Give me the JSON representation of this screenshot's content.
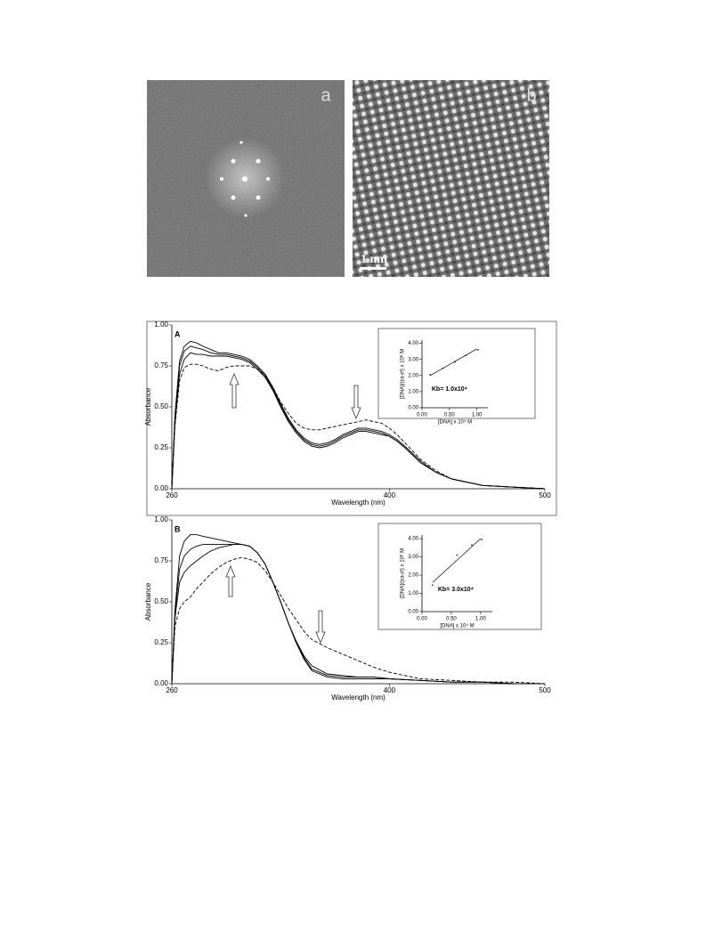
{
  "images": [
    {
      "label": "a"
    },
    {
      "label": "b",
      "scale_bar": "1 nm"
    }
  ],
  "chart_data": [
    {
      "type": "line",
      "panel_label": "A",
      "xlabel": "Wavelength (nm)",
      "ylabel": "Absorbance",
      "x": [
        260,
        262,
        265,
        268,
        272,
        276,
        280,
        285,
        290,
        295,
        300,
        305,
        310,
        315,
        320,
        325,
        330,
        335,
        340,
        345,
        350,
        355,
        360,
        365,
        370,
        375,
        380,
        385,
        390,
        395,
        400,
        405,
        410,
        420,
        430,
        440,
        460,
        480,
        500
      ],
      "xlim": [
        260,
        500
      ],
      "xticks": [
        260,
        400,
        500
      ],
      "ylim": [
        0,
        1
      ],
      "yticks": [
        {
          "value": 0,
          "label": "0.00"
        },
        {
          "value": 0.25,
          "label": "0.25"
        },
        {
          "value": 0.5,
          "label": "0.50"
        },
        {
          "value": 0.75,
          "label": "0.75"
        },
        {
          "value": 1,
          "label": "1.00"
        }
      ],
      "series": [
        {
          "color": "#000000",
          "dashed": false,
          "values": [
            0,
            0.45,
            0.78,
            0.87,
            0.9,
            0.89,
            0.87,
            0.85,
            0.83,
            0.83,
            0.82,
            0.81,
            0.79,
            0.75,
            0.7,
            0.62,
            0.52,
            0.43,
            0.36,
            0.31,
            0.28,
            0.27,
            0.28,
            0.3,
            0.33,
            0.35,
            0.37,
            0.37,
            0.36,
            0.35,
            0.33,
            0.3,
            0.26,
            0.17,
            0.1,
            0.06,
            0.02,
            0.01,
            0
          ]
        },
        {
          "color": "#000000",
          "dashed": false,
          "values": [
            0,
            0.43,
            0.75,
            0.84,
            0.87,
            0.86,
            0.85,
            0.83,
            0.82,
            0.82,
            0.81,
            0.8,
            0.78,
            0.74,
            0.69,
            0.61,
            0.51,
            0.42,
            0.35,
            0.3,
            0.27,
            0.26,
            0.27,
            0.29,
            0.32,
            0.34,
            0.36,
            0.36,
            0.35,
            0.34,
            0.32,
            0.29,
            0.25,
            0.16,
            0.1,
            0.06,
            0.02,
            0.01,
            0
          ]
        },
        {
          "color": "#000000",
          "dashed": false,
          "values": [
            0,
            0.4,
            0.7,
            0.79,
            0.83,
            0.82,
            0.82,
            0.81,
            0.81,
            0.81,
            0.8,
            0.79,
            0.77,
            0.73,
            0.68,
            0.6,
            0.5,
            0.41,
            0.34,
            0.29,
            0.26,
            0.25,
            0.26,
            0.28,
            0.31,
            0.33,
            0.35,
            0.35,
            0.34,
            0.33,
            0.32,
            0.29,
            0.25,
            0.16,
            0.1,
            0.06,
            0.02,
            0.01,
            0
          ]
        },
        {
          "color": "#000000",
          "dashed": true,
          "values": [
            0,
            0.38,
            0.66,
            0.74,
            0.76,
            0.76,
            0.75,
            0.73,
            0.72,
            0.74,
            0.75,
            0.75,
            0.75,
            0.73,
            0.69,
            0.62,
            0.53,
            0.46,
            0.4,
            0.37,
            0.36,
            0.36,
            0.37,
            0.38,
            0.39,
            0.4,
            0.41,
            0.42,
            0.41,
            0.4,
            0.37,
            0.33,
            0.28,
            0.18,
            0.11,
            0.06,
            0.02,
            0.01,
            0
          ]
        }
      ]
    },
    {
      "type": "scatter",
      "xlabel": "[DNA] x 10⁴ M",
      "ylabel": "[DNA]/(εa-εf) x 10⁸ M",
      "annotation": "Kb= 1.0x10⁴",
      "x": [
        0.15,
        0.38,
        0.6,
        0.8,
        1.02
      ],
      "values": [
        2.05,
        2.45,
        2.85,
        3.25,
        3.6
      ],
      "fit": {
        "x": [
          0.15,
          1.0
        ],
        "values": [
          2.0,
          3.65
        ]
      },
      "xlim": [
        0,
        1.2
      ],
      "xticks": [
        {
          "value": 0,
          "label": "0.00"
        },
        {
          "value": 0.5,
          "label": "0.50"
        },
        {
          "value": 1,
          "label": "1.00"
        }
      ],
      "ylim": [
        0,
        4.2
      ],
      "yticks": [
        {
          "value": 0,
          "label": "0.00"
        },
        {
          "value": 1,
          "label": "1.00"
        },
        {
          "value": 2,
          "label": "2.00"
        },
        {
          "value": 3,
          "label": "3.00"
        },
        {
          "value": 4,
          "label": "4.00"
        }
      ]
    },
    {
      "type": "line",
      "panel_label": "B",
      "xlabel": "Wavelength (nm)",
      "ylabel": "Absorbance",
      "x": [
        260,
        262,
        265,
        268,
        272,
        276,
        280,
        285,
        290,
        295,
        300,
        305,
        310,
        315,
        320,
        325,
        330,
        335,
        340,
        345,
        350,
        360,
        370,
        380,
        390,
        400,
        420,
        440,
        460,
        480,
        500
      ],
      "xlim": [
        260,
        500
      ],
      "xticks": [
        260,
        400,
        500
      ],
      "ylim": [
        0,
        1
      ],
      "yticks": [
        {
          "value": 0,
          "label": "0.00"
        },
        {
          "value": 0.25,
          "label": "0.25"
        },
        {
          "value": 0.5,
          "label": "0.50"
        },
        {
          "value": 0.75,
          "label": "0.75"
        },
        {
          "value": 1,
          "label": "1.00"
        }
      ],
      "series": [
        {
          "color": "#000000",
          "dashed": false,
          "values": [
            0,
            0.45,
            0.78,
            0.87,
            0.91,
            0.91,
            0.9,
            0.89,
            0.88,
            0.87,
            0.86,
            0.85,
            0.84,
            0.8,
            0.73,
            0.62,
            0.5,
            0.37,
            0.25,
            0.15,
            0.08,
            0.04,
            0.03,
            0.03,
            0.03,
            0.03,
            0.02,
            0.01,
            0.01,
            0,
            0
          ]
        },
        {
          "color": "#000000",
          "dashed": false,
          "values": [
            0,
            0.42,
            0.7,
            0.78,
            0.82,
            0.84,
            0.85,
            0.85,
            0.85,
            0.85,
            0.85,
            0.85,
            0.84,
            0.8,
            0.73,
            0.62,
            0.5,
            0.37,
            0.25,
            0.16,
            0.09,
            0.05,
            0.04,
            0.04,
            0.04,
            0.03,
            0.02,
            0.01,
            0.01,
            0,
            0
          ]
        },
        {
          "color": "#000000",
          "dashed": false,
          "values": [
            0,
            0.4,
            0.62,
            0.68,
            0.72,
            0.75,
            0.78,
            0.81,
            0.83,
            0.84,
            0.85,
            0.85,
            0.84,
            0.8,
            0.73,
            0.62,
            0.5,
            0.37,
            0.26,
            0.17,
            0.11,
            0.06,
            0.05,
            0.04,
            0.04,
            0.03,
            0.02,
            0.01,
            0.01,
            0,
            0
          ]
        },
        {
          "color": "#000000",
          "dashed": true,
          "values": [
            0,
            0.35,
            0.46,
            0.5,
            0.53,
            0.58,
            0.62,
            0.67,
            0.71,
            0.74,
            0.76,
            0.77,
            0.76,
            0.74,
            0.69,
            0.62,
            0.54,
            0.46,
            0.39,
            0.32,
            0.27,
            0.22,
            0.18,
            0.14,
            0.1,
            0.07,
            0.03,
            0.02,
            0.01,
            0.01,
            0
          ]
        }
      ]
    },
    {
      "type": "scatter",
      "xlabel": "[DNA] x 10⁴ M",
      "ylabel": "[DNA]/(εa-εf) x 10⁸ M",
      "annotation": "Kb= 3.0x10⁴",
      "x": [
        0.18,
        0.6,
        0.85,
        1.02
      ],
      "values": [
        1.45,
        3.1,
        3.65,
        3.95
      ],
      "fit": {
        "x": [
          0.18,
          1.0
        ],
        "values": [
          1.6,
          4.0
        ]
      },
      "xlim": [
        0,
        1.2
      ],
      "xticks": [
        {
          "value": 0,
          "label": "0.00"
        },
        {
          "value": 0.5,
          "label": "0.50"
        },
        {
          "value": 1,
          "label": "1.00"
        }
      ],
      "ylim": [
        0,
        4.2
      ],
      "yticks": [
        {
          "value": 0,
          "label": "0.00"
        },
        {
          "value": 1,
          "label": "1.00"
        },
        {
          "value": 2,
          "label": "2.00"
        },
        {
          "value": 3,
          "label": "3.00"
        },
        {
          "value": 4,
          "label": "4.00"
        }
      ]
    }
  ]
}
